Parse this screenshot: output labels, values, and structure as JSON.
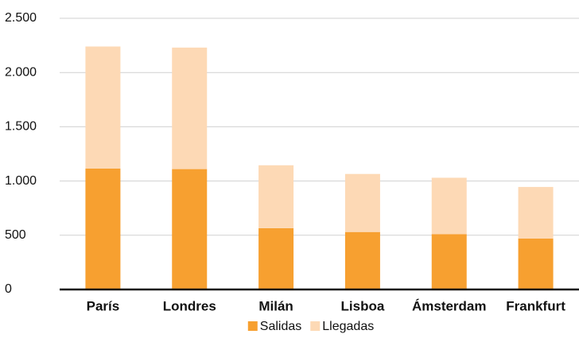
{
  "chart_data": {
    "type": "stacked_bar",
    "categories": [
      "París",
      "Londres",
      "Milán",
      "Lisboa",
      "Ámsterdam",
      "Frankfurt"
    ],
    "series": [
      {
        "name": "Salidas",
        "color": "#f7a030",
        "values": [
          1115,
          1110,
          565,
          530,
          510,
          470
        ]
      },
      {
        "name": "Llegadas",
        "color": "#fdd9b5",
        "values": [
          1125,
          1120,
          580,
          535,
          520,
          475
        ]
      }
    ],
    "ylim": [
      0,
      2500
    ],
    "yticks": [
      0,
      500,
      {
        "value": 1000,
        "label": "1.000"
      },
      {
        "value": 1500,
        "label": "1.500"
      },
      {
        "value": 2000,
        "label": "2.000"
      },
      {
        "value": 2500,
        "label": "2.500"
      }
    ],
    "grid": true,
    "legend": "bottom"
  }
}
